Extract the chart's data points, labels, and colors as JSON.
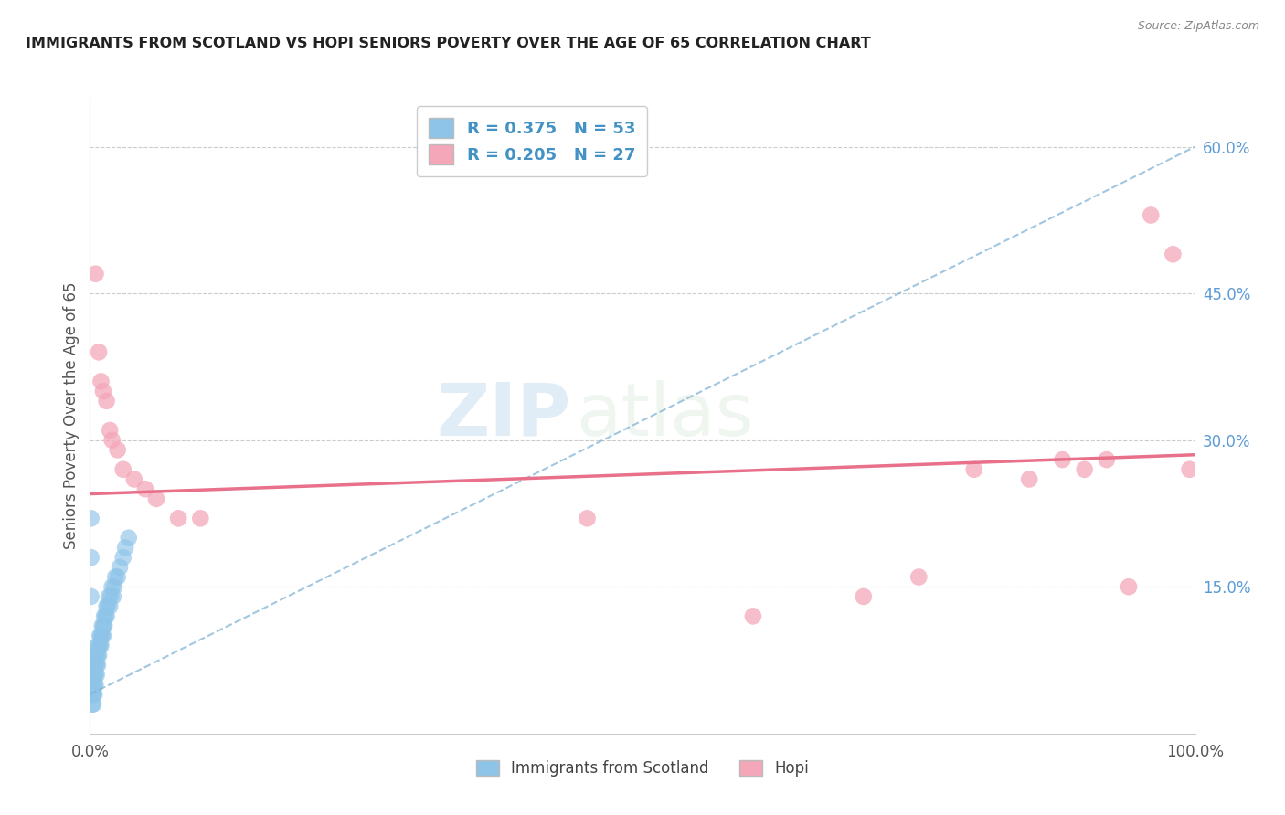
{
  "title": "IMMIGRANTS FROM SCOTLAND VS HOPI SENIORS POVERTY OVER THE AGE OF 65 CORRELATION CHART",
  "source": "Source: ZipAtlas.com",
  "ylabel": "Seniors Poverty Over the Age of 65",
  "legend_label1": "Immigrants from Scotland",
  "legend_label2": "Hopi",
  "R1": 0.375,
  "N1": 53,
  "R2": 0.205,
  "N2": 27,
  "color1": "#8ec4e8",
  "color2": "#f4a7b9",
  "line_color1": "#7ab0d4",
  "line_color2": "#e8708a",
  "xlim": [
    0.0,
    1.0
  ],
  "ylim": [
    0.0,
    0.65
  ],
  "y_ticks": [
    0.15,
    0.3,
    0.45,
    0.6
  ],
  "y_tick_labels": [
    "15.0%",
    "30.0%",
    "45.0%",
    "60.0%"
  ],
  "watermark_zip": "ZIP",
  "watermark_atlas": "atlas",
  "background_color": "#ffffff",
  "scotland_x": [
    0.001,
    0.001,
    0.001,
    0.002,
    0.002,
    0.002,
    0.002,
    0.003,
    0.003,
    0.003,
    0.003,
    0.003,
    0.004,
    0.004,
    0.004,
    0.004,
    0.005,
    0.005,
    0.005,
    0.006,
    0.006,
    0.006,
    0.007,
    0.007,
    0.007,
    0.008,
    0.008,
    0.009,
    0.009,
    0.01,
    0.01,
    0.011,
    0.011,
    0.012,
    0.012,
    0.013,
    0.013,
    0.014,
    0.015,
    0.015,
    0.016,
    0.017,
    0.018,
    0.019,
    0.02,
    0.021,
    0.022,
    0.023,
    0.025,
    0.027,
    0.03,
    0.032,
    0.035
  ],
  "scotland_y": [
    0.22,
    0.18,
    0.14,
    0.06,
    0.05,
    0.04,
    0.03,
    0.07,
    0.06,
    0.05,
    0.04,
    0.03,
    0.08,
    0.06,
    0.05,
    0.04,
    0.07,
    0.06,
    0.05,
    0.08,
    0.07,
    0.06,
    0.09,
    0.08,
    0.07,
    0.09,
    0.08,
    0.1,
    0.09,
    0.1,
    0.09,
    0.11,
    0.1,
    0.11,
    0.1,
    0.12,
    0.11,
    0.12,
    0.13,
    0.12,
    0.13,
    0.14,
    0.13,
    0.14,
    0.15,
    0.14,
    0.15,
    0.16,
    0.16,
    0.17,
    0.18,
    0.19,
    0.2
  ],
  "hopi_x": [
    0.005,
    0.008,
    0.01,
    0.012,
    0.015,
    0.018,
    0.02,
    0.025,
    0.03,
    0.04,
    0.05,
    0.06,
    0.08,
    0.1,
    0.45,
    0.6,
    0.7,
    0.75,
    0.8,
    0.85,
    0.88,
    0.9,
    0.92,
    0.94,
    0.96,
    0.98,
    0.995
  ],
  "hopi_y": [
    0.47,
    0.39,
    0.36,
    0.35,
    0.34,
    0.31,
    0.3,
    0.29,
    0.27,
    0.26,
    0.25,
    0.24,
    0.22,
    0.22,
    0.22,
    0.12,
    0.14,
    0.16,
    0.27,
    0.26,
    0.28,
    0.27,
    0.28,
    0.15,
    0.53,
    0.49,
    0.27
  ],
  "trend1_x": [
    0.0,
    1.0
  ],
  "trend1_y": [
    0.04,
    0.6
  ],
  "trend2_x": [
    0.0,
    1.0
  ],
  "trend2_y": [
    0.245,
    0.285
  ]
}
